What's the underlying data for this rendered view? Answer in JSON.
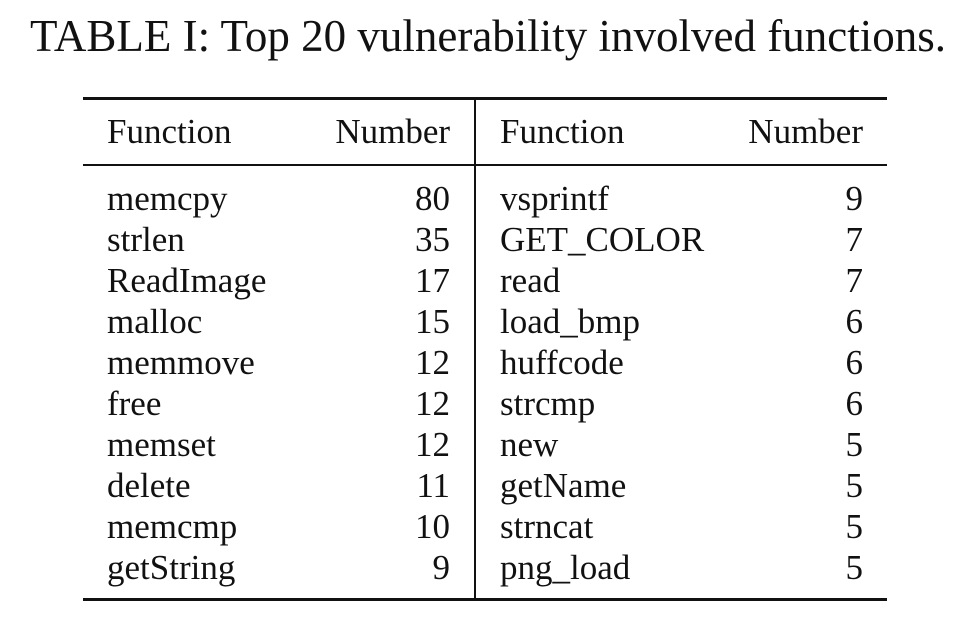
{
  "caption": "TABLE I: Top 20 vulnerability involved functions.",
  "table": {
    "headers": [
      "Function",
      "Number",
      "Function",
      "Number"
    ],
    "rows": [
      [
        "memcpy",
        "80",
        "vsprintf",
        "9"
      ],
      [
        "strlen",
        "35",
        "GET_COLOR",
        "7"
      ],
      [
        "ReadImage",
        "17",
        "read",
        "7"
      ],
      [
        "malloc",
        "15",
        "load_bmp",
        "6"
      ],
      [
        "memmove",
        "12",
        "huffcode",
        "6"
      ],
      [
        "free",
        "12",
        "strcmp",
        "6"
      ],
      [
        "memset",
        "12",
        "new",
        "5"
      ],
      [
        "delete",
        "11",
        "getName",
        "5"
      ],
      [
        "memcmp",
        "10",
        "strncat",
        "5"
      ],
      [
        "getString",
        "9",
        "png_load",
        "5"
      ]
    ]
  }
}
